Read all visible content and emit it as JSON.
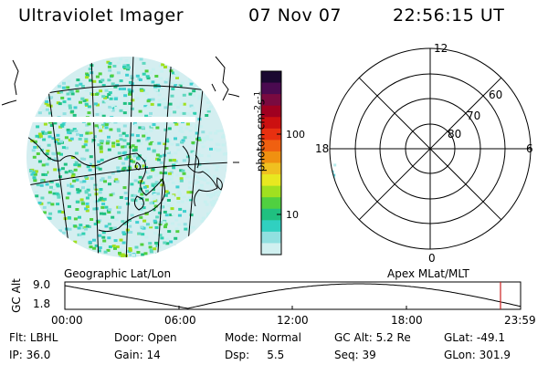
{
  "header": {
    "title": "Ultraviolet Imager",
    "date": "07 Nov 07",
    "time": "22:56:15 UT"
  },
  "colorbar": {
    "unit_main": "photon cm",
    "unit_sup1": "-2",
    "unit_s": "s",
    "unit_sup2": "-1",
    "tick_100": "100",
    "tick_10": "10",
    "colors": [
      "#1a0830",
      "#4a0a50",
      "#7a0a40",
      "#a00020",
      "#cc1010",
      "#e83010",
      "#f06010",
      "#f09010",
      "#f0c020",
      "#e8e820",
      "#a0e020",
      "#50d040",
      "#20c080",
      "#30d0c0",
      "#90e0e0",
      "#d0f0f0"
    ]
  },
  "polar": {
    "mlt_12": "12",
    "mlt_18": "18",
    "mlt_6": "6",
    "mlt_0": "0",
    "lat_60": "60",
    "lat_70": "70",
    "lat_80": "80"
  },
  "timeline": {
    "left_title": "Geographic Lat/Lon",
    "right_title": "Apex MLat/MLT",
    "ylabel": "GC Alt",
    "ytick_top": "9.0",
    "ytick_bottom": "1.8",
    "xticks": [
      "00:00",
      "06:00",
      "12:00",
      "18:00",
      "23:59"
    ],
    "marker_color": "#cc2222"
  },
  "status": {
    "flt_label": "Flt:",
    "flt_value": "LBHL",
    "door_label": "Door:",
    "door_value": "Open",
    "mode_label": "Mode:",
    "mode_value": "Normal",
    "gcalt_label": "GC Alt:",
    "gcalt_value": "5.2 Re",
    "glat_label": "GLat:",
    "glat_value": "-49.1",
    "ip_label": "IP:",
    "ip_value": "36.0",
    "gain_label": "Gain:",
    "gain_value": "14",
    "dsp_label": "Dsp:",
    "dsp_value": "5.5",
    "seq_label": "Seq:",
    "seq_value": "39",
    "glon_label": "GLon:",
    "glon_value": "301.9"
  }
}
